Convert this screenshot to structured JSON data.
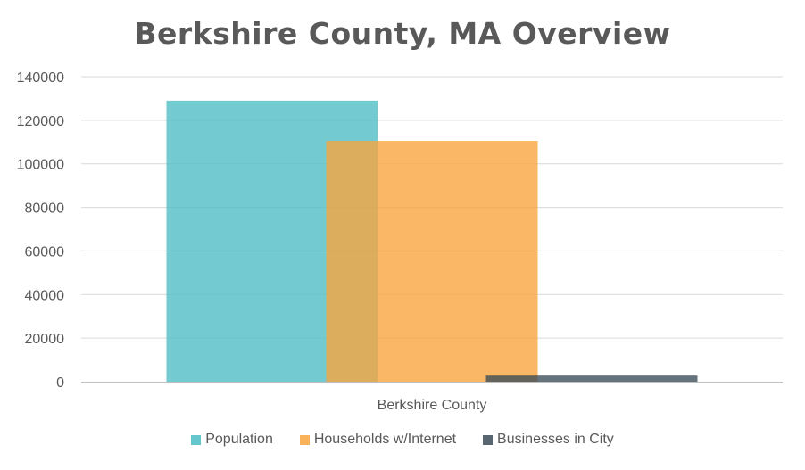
{
  "chart_data": {
    "type": "bar",
    "title": "Berkshire County, MA Overview",
    "categories": [
      "Berkshire County"
    ],
    "series": [
      {
        "name": "Population",
        "values": [
          129000
        ],
        "color": "#4bbcc4"
      },
      {
        "name": "Households w/Internet",
        "values": [
          110500
        ],
        "color": "#f8a43c"
      },
      {
        "name": "Businesses in City",
        "values": [
          2800
        ],
        "color": "#3a4b58"
      }
    ],
    "ylim": [
      0,
      140000
    ],
    "yticks": [
      "0",
      "20000",
      "40000",
      "60000",
      "80000",
      "100000",
      "120000",
      "140000"
    ],
    "grid": true,
    "legend": "bottom",
    "overlapping_bars": true
  }
}
